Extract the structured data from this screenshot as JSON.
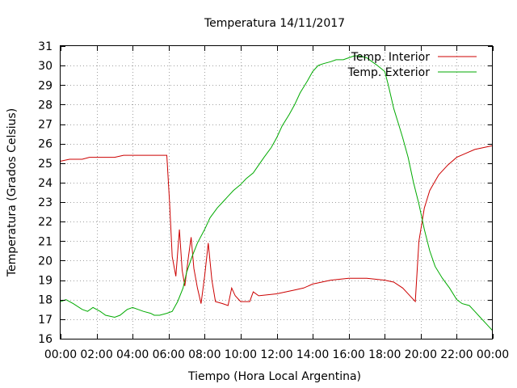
{
  "chart_data": {
    "type": "line",
    "title": "Temperatura 14/11/2017",
    "xlabel": "Tiempo (Hora Local Argentina)",
    "ylabel": "Temperatura (Grados Celsius)",
    "x_tick_labels": [
      "00:00",
      "02:00",
      "04:00",
      "06:00",
      "08:00",
      "10:00",
      "12:00",
      "14:00",
      "16:00",
      "18:00",
      "20:00",
      "22:00",
      "00:00"
    ],
    "xlim_hours": [
      0,
      24
    ],
    "ylim": [
      16,
      31
    ],
    "y_ticks": [
      16,
      17,
      18,
      19,
      20,
      21,
      22,
      23,
      24,
      25,
      26,
      27,
      28,
      29,
      30,
      31
    ],
    "grid": true,
    "legend_position": "top-right",
    "series": [
      {
        "name": "Temp. Interior",
        "color": "#cc0000",
        "x": [
          0,
          0.5,
          1.2,
          1.6,
          2,
          3,
          3.5,
          4,
          5,
          5.9,
          6.05,
          6.2,
          6.4,
          6.6,
          6.75,
          6.9,
          7.1,
          7.25,
          7.4,
          7.6,
          7.8,
          8.0,
          8.2,
          8.4,
          8.6,
          9.0,
          9.3,
          9.5,
          9.7,
          10,
          10.5,
          10.7,
          11,
          12,
          13,
          13.5,
          14,
          15,
          16,
          17,
          18,
          18.5,
          19,
          19.5,
          19.7,
          19.9,
          20.2,
          20.5,
          21,
          21.5,
          22,
          22.5,
          23,
          23.5,
          24
        ],
        "y": [
          25.1,
          25.2,
          25.2,
          25.3,
          25.3,
          25.3,
          25.4,
          25.4,
          25.4,
          25.4,
          23,
          20.2,
          19.2,
          21.6,
          19.5,
          18.7,
          20.2,
          21.2,
          19.6,
          18.6,
          17.8,
          19.2,
          20.9,
          19.0,
          17.9,
          17.8,
          17.7,
          18.6,
          18.2,
          17.9,
          17.9,
          18.4,
          18.2,
          18.3,
          18.5,
          18.6,
          18.8,
          19.0,
          19.1,
          19.1,
          19.0,
          18.9,
          18.6,
          18.1,
          17.9,
          21.0,
          22.7,
          23.6,
          24.4,
          24.9,
          25.3,
          25.5,
          25.7,
          25.8,
          25.9
        ]
      },
      {
        "name": "Temp. Exterior",
        "color": "#00aa00",
        "x": [
          0,
          0.3,
          0.7,
          1.2,
          1.5,
          1.8,
          2.2,
          2.5,
          3,
          3.3,
          3.7,
          4,
          4.3,
          4.6,
          5,
          5.2,
          5.5,
          5.9,
          6.2,
          6.5,
          6.8,
          7.0,
          7.3,
          7.6,
          8.0,
          8.3,
          8.7,
          9.0,
          9.3,
          9.6,
          10,
          10.3,
          10.7,
          11,
          11.3,
          11.7,
          12,
          12.3,
          12.7,
          13,
          13.3,
          13.7,
          14,
          14.3,
          14.6,
          15,
          15.3,
          15.7,
          16,
          16.3,
          16.6,
          17,
          17.3,
          17.6,
          18,
          18.2,
          18.5,
          18.8,
          19,
          19.3,
          19.6,
          19.9,
          20.2,
          20.5,
          20.8,
          21.2,
          21.6,
          22,
          22.3,
          22.7,
          23,
          23.3,
          23.6,
          24
        ],
        "y": [
          17.9,
          18.0,
          17.8,
          17.5,
          17.4,
          17.6,
          17.4,
          17.2,
          17.1,
          17.2,
          17.5,
          17.6,
          17.5,
          17.4,
          17.3,
          17.2,
          17.2,
          17.3,
          17.4,
          17.9,
          18.6,
          19.4,
          20.2,
          20.9,
          21.6,
          22.2,
          22.7,
          23.0,
          23.3,
          23.6,
          23.9,
          24.2,
          24.5,
          24.9,
          25.3,
          25.8,
          26.3,
          26.9,
          27.5,
          28.0,
          28.6,
          29.2,
          29.7,
          30.0,
          30.1,
          30.2,
          30.3,
          30.3,
          30.4,
          30.5,
          30.5,
          30.4,
          30.2,
          30.0,
          29.7,
          29.0,
          27.8,
          26.9,
          26.3,
          25.3,
          24.0,
          22.9,
          21.6,
          20.5,
          19.7,
          19.1,
          18.6,
          18.0,
          17.8,
          17.7,
          17.4,
          17.1,
          16.8,
          16.4
        ]
      }
    ]
  }
}
